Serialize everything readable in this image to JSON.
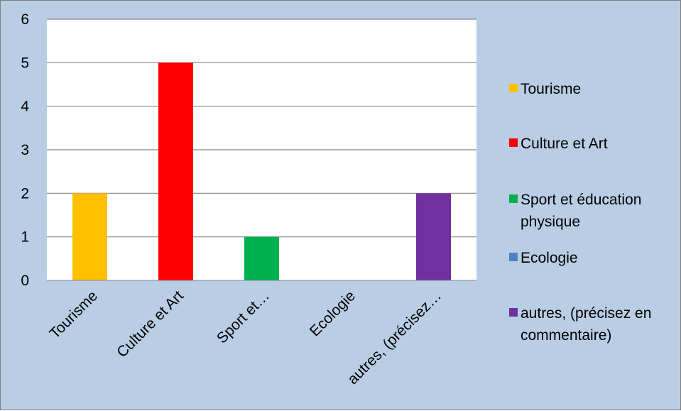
{
  "chart_data": {
    "type": "bar",
    "title": "",
    "xlabel": "",
    "ylabel": "",
    "categories": [
      "Tourisme",
      "Culture et Art",
      "Sport et…",
      "Ecologie",
      "autres, (précisez…"
    ],
    "values": [
      2,
      5,
      1,
      0,
      2
    ],
    "colors": [
      "#ffc000",
      "#ff0000",
      "#00b050",
      "#4f81bd",
      "#7030a0"
    ],
    "ylim": [
      0,
      6
    ],
    "yticks": [
      0,
      1,
      2,
      3,
      4,
      5,
      6
    ],
    "grid": true,
    "legend_position": "right",
    "legend": [
      {
        "lines": [
          "Tourisme"
        ],
        "color": "#ffc000"
      },
      {
        "lines": [
          "Culture et Art"
        ],
        "color": "#ff0000"
      },
      {
        "lines": [
          "Sport et éducation",
          "physique"
        ],
        "color": "#00b050"
      },
      {
        "lines": [
          "Ecologie"
        ],
        "color": "#4f81bd"
      },
      {
        "lines": [
          "autres, (précisez en",
          "commentaire)"
        ],
        "color": "#7030a0"
      }
    ],
    "background_color": "#b9cde5",
    "plot_background_color": "#ffffff"
  }
}
